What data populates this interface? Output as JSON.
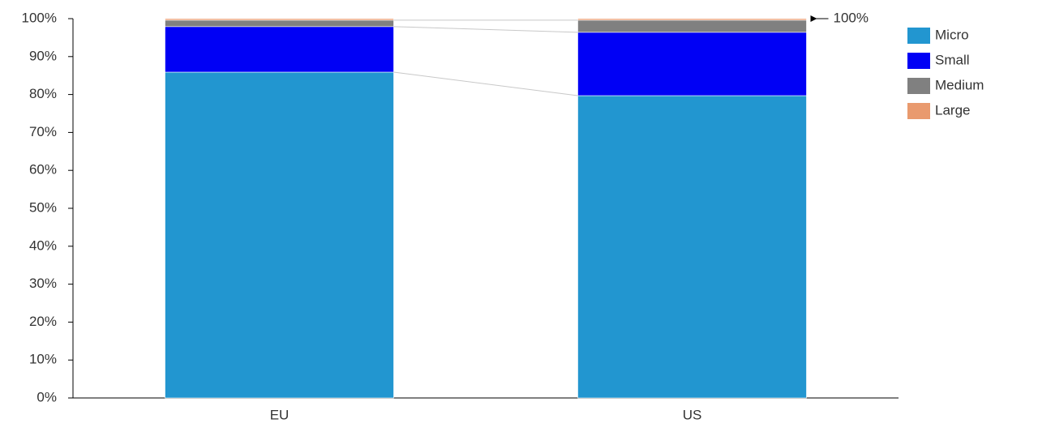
{
  "chart_data": {
    "type": "stacked_bar",
    "categories": [
      "EU",
      "US"
    ],
    "series": [
      {
        "name": "Micro",
        "color": "#2296d0",
        "values": [
          85.9,
          79.7
        ]
      },
      {
        "name": "Small",
        "color": "#0000f5",
        "values": [
          12.0,
          16.7
        ]
      },
      {
        "name": "Medium",
        "color": "#808080",
        "values": [
          1.7,
          3.2
        ]
      },
      {
        "name": "Large",
        "color": "#e99a6e",
        "values": [
          0.4,
          0.4
        ]
      }
    ],
    "ylim": [
      0,
      100
    ],
    "yticks": [
      {
        "value": 0,
        "label": "0%"
      },
      {
        "value": 10,
        "label": "10%"
      },
      {
        "value": 20,
        "label": "20%"
      },
      {
        "value": 30,
        "label": "30%"
      },
      {
        "value": 40,
        "label": "40%"
      },
      {
        "value": 50,
        "label": "50%"
      },
      {
        "value": 60,
        "label": "60%"
      },
      {
        "value": 70,
        "label": "70%"
      },
      {
        "value": 80,
        "label": "80%"
      },
      {
        "value": 90,
        "label": "90%"
      },
      {
        "value": 100,
        "label": "100%"
      }
    ],
    "annotation": "100%",
    "legend": "right"
  }
}
